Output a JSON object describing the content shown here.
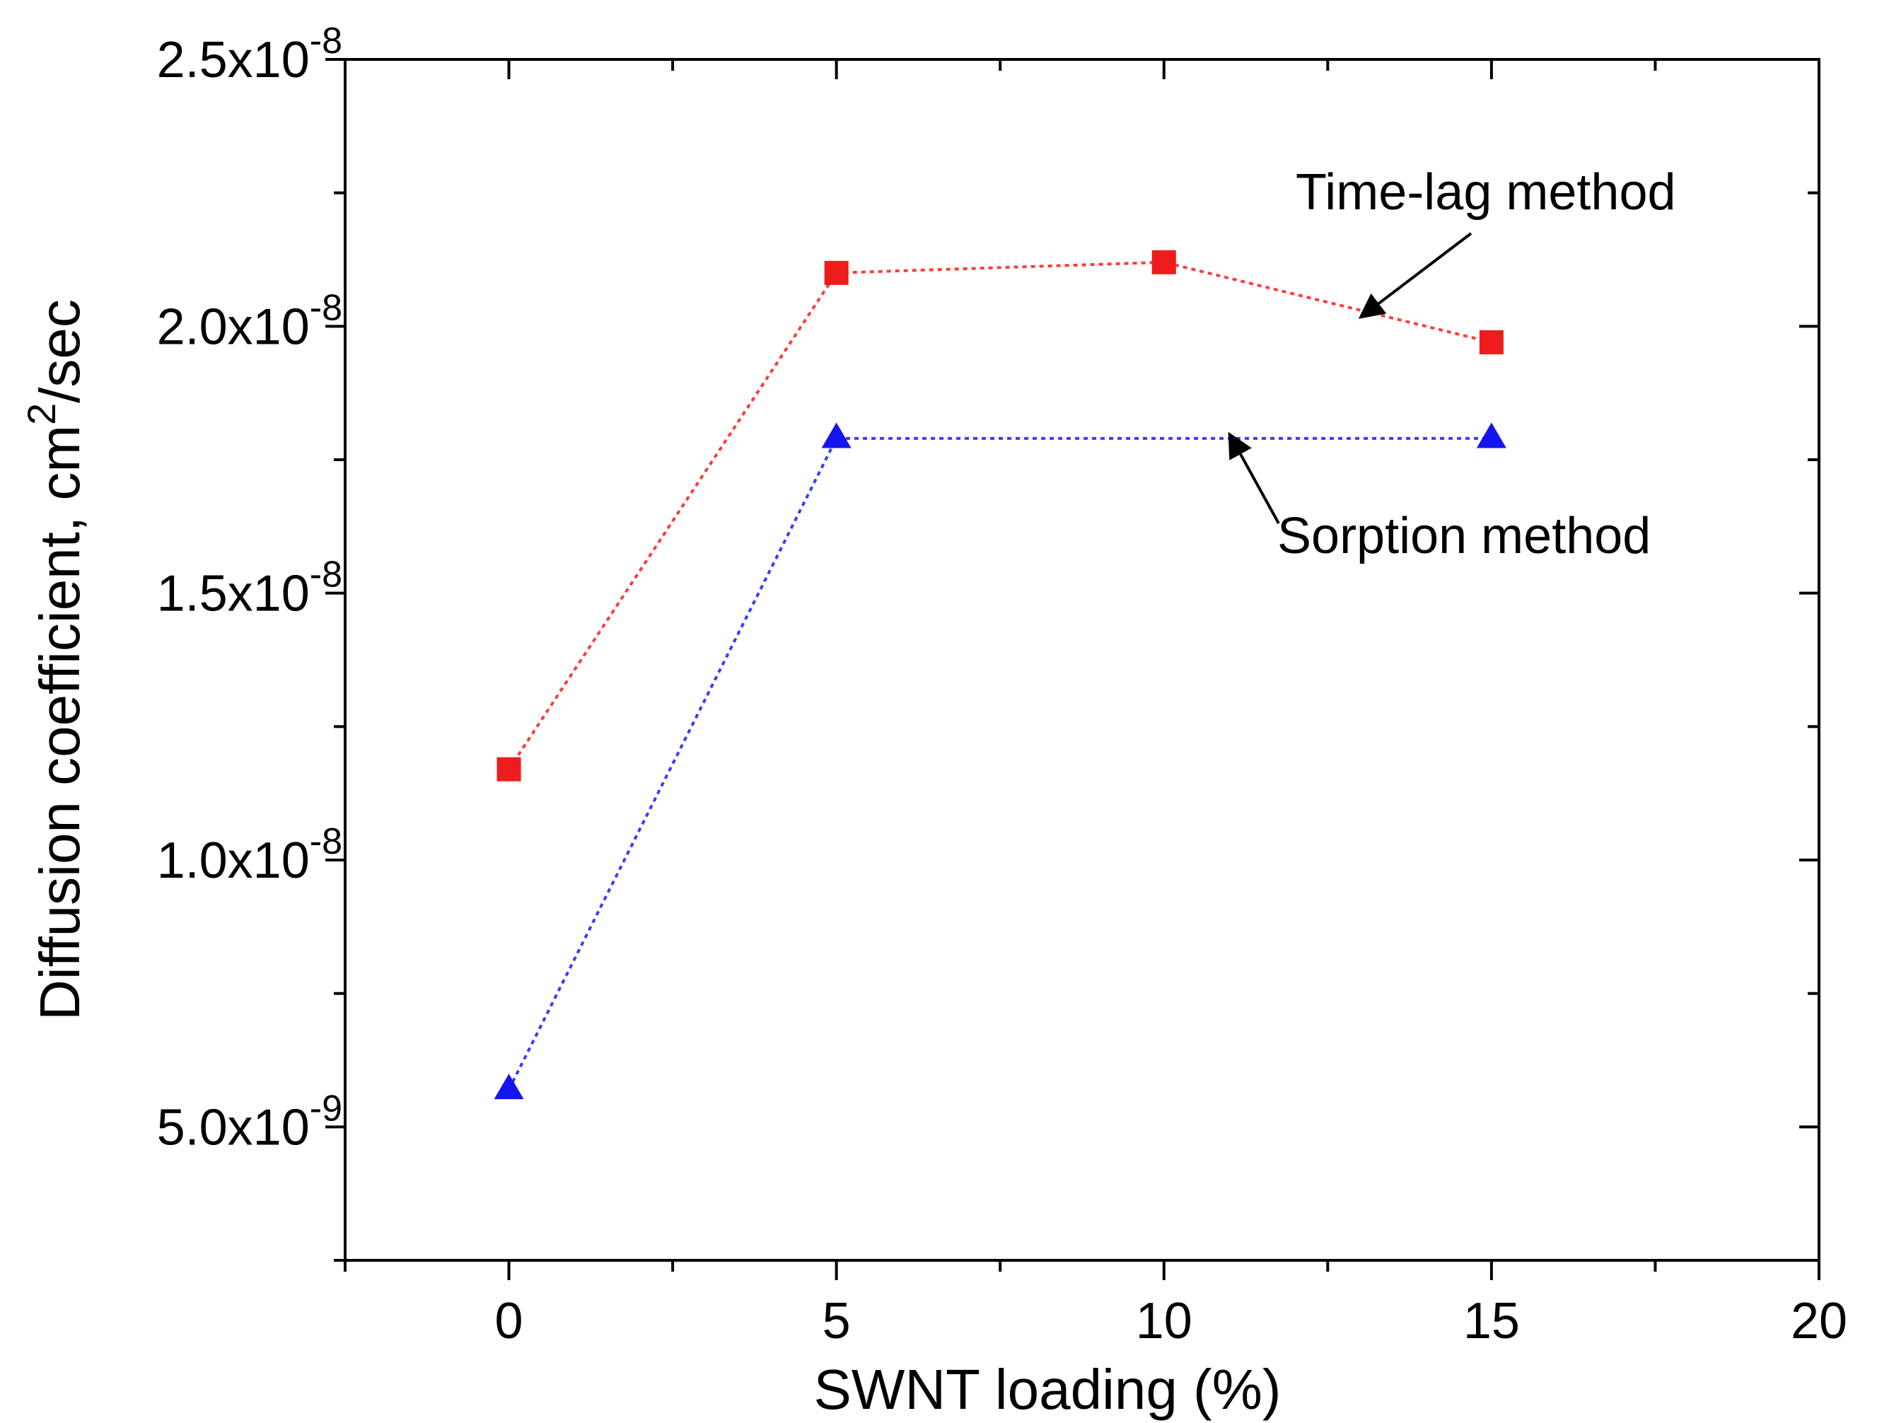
{
  "chart_data": {
    "type": "line",
    "title": "",
    "xlabel": "SWNT loading (%)",
    "ylabel": "Diffusion coefficient, cm²/sec",
    "ylabel_parts": {
      "base": "Diffusion coefficient, cm",
      "sup": "2",
      "tail": "/sec"
    },
    "xlim": [
      -2.5,
      20
    ],
    "ylim": [
      2.5e-09,
      2.5e-08
    ],
    "grid": false,
    "x_ticks": [
      {
        "value": 0,
        "label": "0"
      },
      {
        "value": 5,
        "label": "5"
      },
      {
        "value": 10,
        "label": "10"
      },
      {
        "value": 15,
        "label": "15"
      },
      {
        "value": 20,
        "label": "20"
      }
    ],
    "x_minor_ticks": [
      -2.5,
      2.5,
      7.5,
      12.5,
      17.5
    ],
    "y_ticks": [
      {
        "value": 5e-09,
        "mantissa": "5.0x10",
        "exp": "-9"
      },
      {
        "value": 1e-08,
        "mantissa": "1.0x10",
        "exp": "-8"
      },
      {
        "value": 1.5e-08,
        "mantissa": "1.5x10",
        "exp": "-8"
      },
      {
        "value": 2e-08,
        "mantissa": "2.0x10",
        "exp": "-8"
      },
      {
        "value": 2.5e-08,
        "mantissa": "2.5x10",
        "exp": "-8"
      }
    ],
    "y_minor_ticks": [
      2.5e-09,
      7.5e-09,
      1.25e-08,
      1.75e-08,
      2.25e-08
    ],
    "series": [
      {
        "name": "Time-lag method",
        "marker": "square",
        "color": "#ee1c1c",
        "line_color": "#ff3a3a",
        "x": [
          0,
          5,
          10,
          15
        ],
        "values": [
          1.17e-08,
          2.1e-08,
          2.12e-08,
          1.97e-08
        ]
      },
      {
        "name": "Sorption method",
        "marker": "triangle",
        "color": "#1414ee",
        "line_color": "#3a3aff",
        "x": [
          0,
          5,
          15
        ],
        "values": [
          5.7e-09,
          1.79e-08,
          1.79e-08
        ]
      }
    ],
    "annotations": [
      {
        "text": "Time-lag method",
        "series": 0,
        "arrow_to_x": 13.0
      },
      {
        "text": "Sorption method",
        "series": 1,
        "arrow_to_x": 11.0
      }
    ]
  }
}
